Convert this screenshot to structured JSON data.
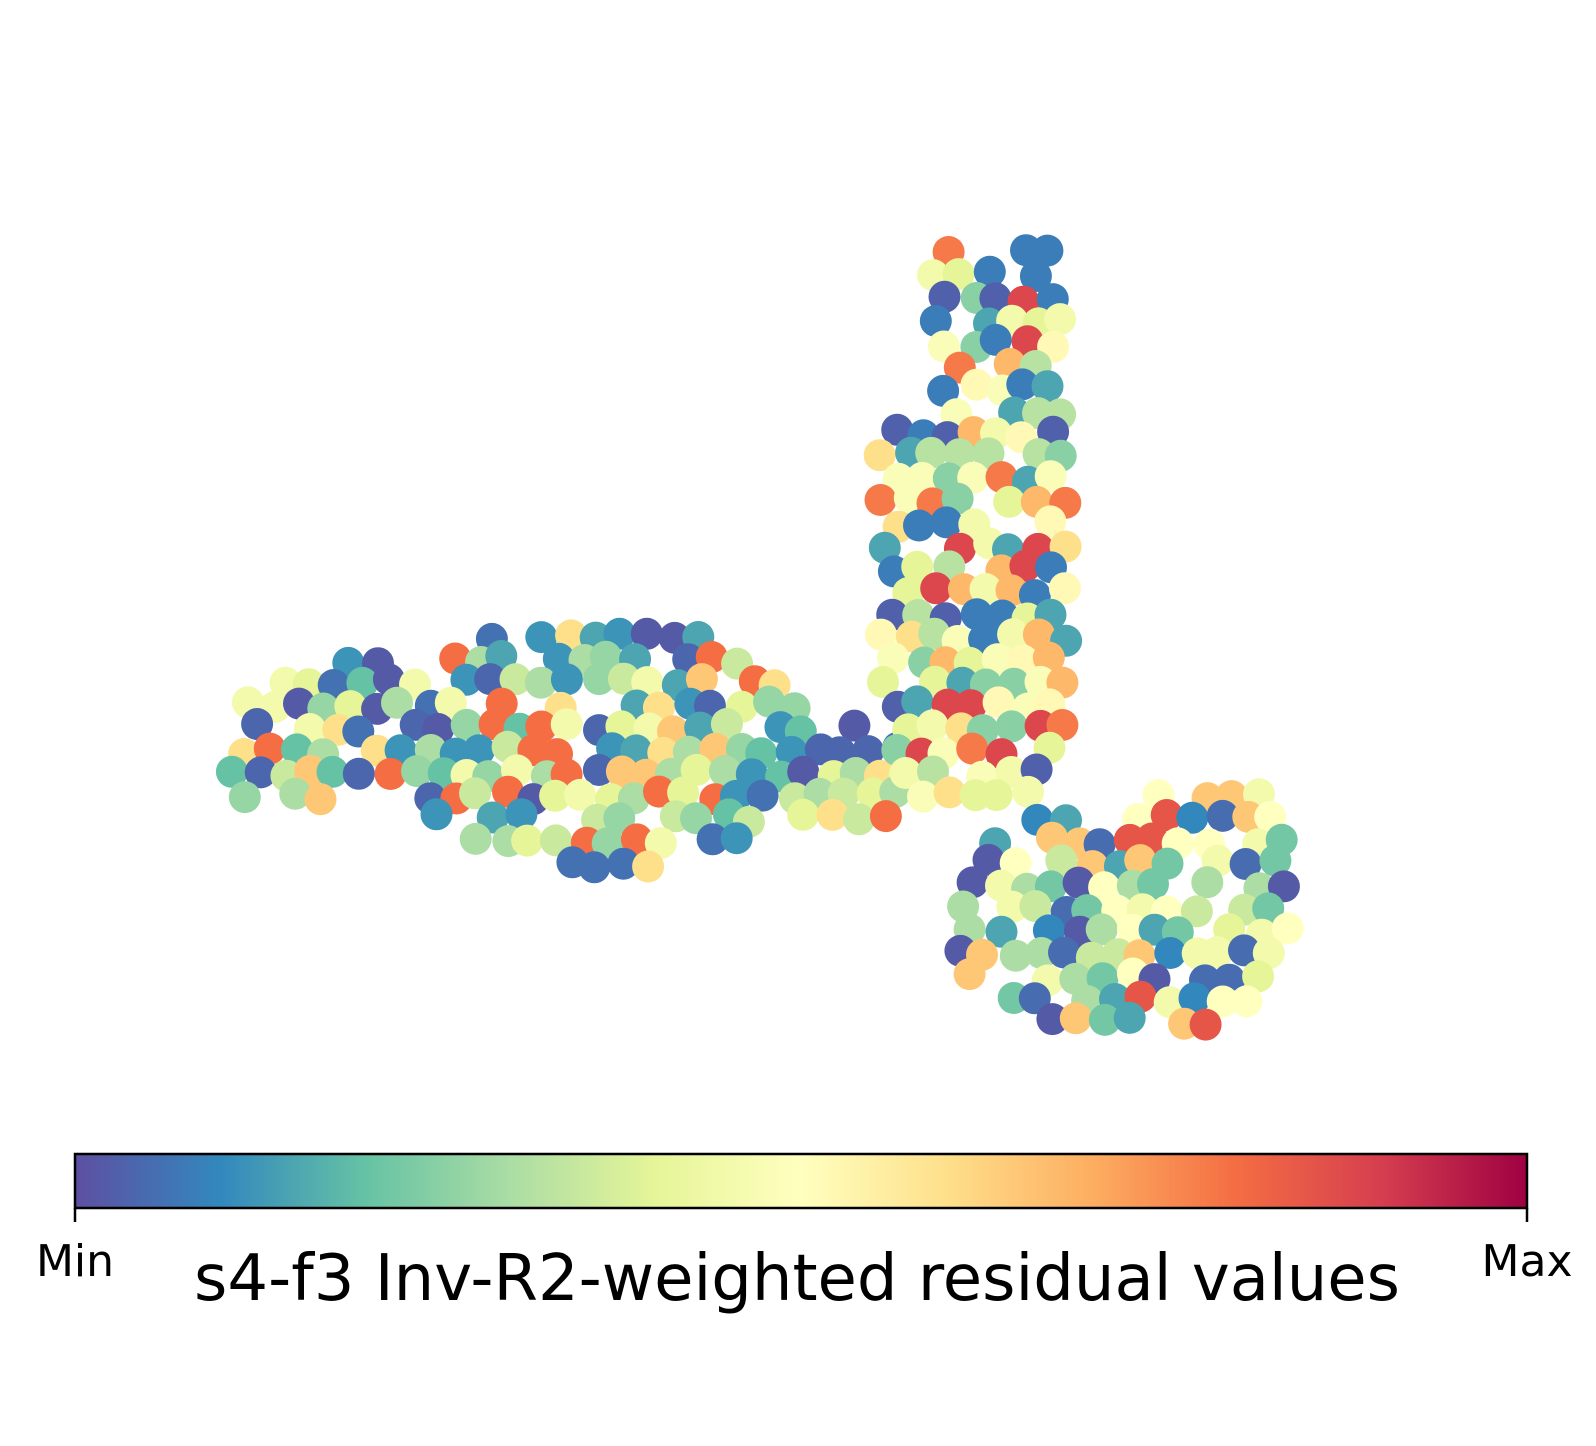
{
  "chart_data": {
    "type": "scatter",
    "title": "",
    "xlabel": "",
    "ylabel": "",
    "colormap": "Spectral_r",
    "axes_visible": false,
    "grid": false,
    "marker": "filled circle",
    "colorbar": {
      "orientation": "horizontal",
      "placement": "bottom",
      "label": "s4-f3 Inv-R2-weighted residual values",
      "min_label": "Min",
      "max_label": "Max",
      "colors": [
        "#5e4fa2",
        "#3288bd",
        "#66c2a5",
        "#abdda4",
        "#e6f598",
        "#ffffbf",
        "#fee08b",
        "#fdae61",
        "#f46d43",
        "#d53e4f",
        "#9e0142"
      ]
    },
    "regions": [
      {
        "name": "left lobe",
        "cx": 0.36,
        "cy": 0.52,
        "rx": 0.2,
        "ry": 0.11,
        "palette": [
          0.02,
          0.04,
          0.06,
          0.12,
          0.15,
          0.2,
          0.27,
          0.3,
          0.35,
          0.4,
          0.45,
          0.6,
          0.65,
          0.8
        ]
      },
      {
        "name": "vertical stem",
        "cx": 0.61,
        "cy": 0.5,
        "rx": 0.04,
        "ry": 0.25,
        "palette": [
          0.03,
          0.08,
          0.15,
          0.25,
          0.32,
          0.4,
          0.45,
          0.48,
          0.52,
          0.6,
          0.68,
          0.78,
          0.88
        ]
      },
      {
        "name": "lower right cluster",
        "cx": 0.73,
        "cy": 0.73,
        "rx": 0.09,
        "ry": 0.09,
        "palette": [
          0.02,
          0.05,
          0.1,
          0.15,
          0.22,
          0.3,
          0.35,
          0.4,
          0.45,
          0.5,
          0.65,
          0.85
        ]
      }
    ]
  }
}
